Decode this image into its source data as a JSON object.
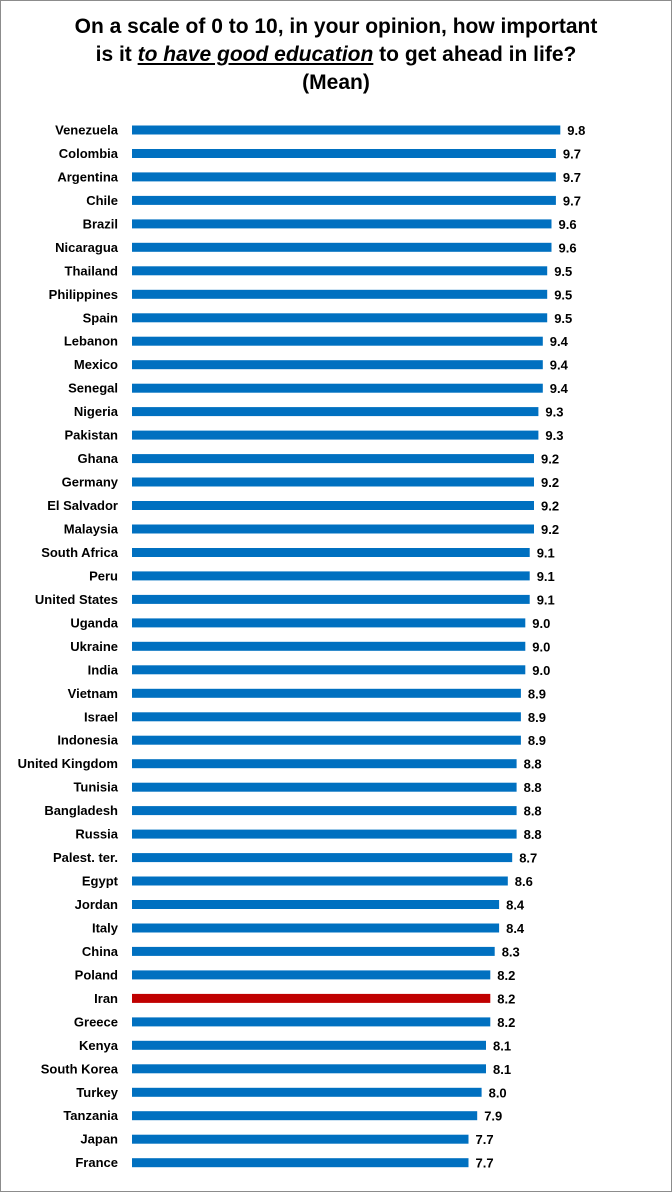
{
  "title": {
    "line1": "On a scale of 0 to 10, in your opinion, how important",
    "line2_pre": "is it ",
    "line2_emph": "to have good education",
    "line2_post": " to get ahead in life?",
    "line3": "(Mean)"
  },
  "chart_data": {
    "type": "bar",
    "orientation": "horizontal",
    "title": "On a scale of 0 to 10, in your opinion, how important is it to have good education to get ahead in life? (Mean)",
    "xlim": [
      0,
      10
    ],
    "grid": false,
    "legend": "none",
    "bar_color": "#0070c0",
    "highlight_color": "#c00000",
    "highlight_category": "Iran",
    "categories": [
      "Venezuela",
      "Colombia",
      "Argentina",
      "Chile",
      "Brazil",
      "Nicaragua",
      "Thailand",
      "Philippines",
      "Spain",
      "Lebanon",
      "Mexico",
      "Senegal",
      "Nigeria",
      "Pakistan",
      "Ghana",
      "Germany",
      "El Salvador",
      "Malaysia",
      "South Africa",
      "Peru",
      "United States",
      "Uganda",
      "Ukraine",
      "India",
      "Vietnam",
      "Israel",
      "Indonesia",
      "United Kingdom",
      "Tunisia",
      "Bangladesh",
      "Russia",
      "Palest. ter.",
      "Egypt",
      "Jordan",
      "Italy",
      "China",
      "Poland",
      "Iran",
      "Greece",
      "Kenya",
      "South Korea",
      "Turkey",
      "Tanzania",
      "Japan",
      "France"
    ],
    "values": [
      9.8,
      9.7,
      9.7,
      9.7,
      9.6,
      9.6,
      9.5,
      9.5,
      9.5,
      9.4,
      9.4,
      9.4,
      9.3,
      9.3,
      9.2,
      9.2,
      9.2,
      9.2,
      9.1,
      9.1,
      9.1,
      9.0,
      9.0,
      9.0,
      8.9,
      8.9,
      8.9,
      8.8,
      8.8,
      8.8,
      8.8,
      8.7,
      8.6,
      8.4,
      8.4,
      8.3,
      8.2,
      8.2,
      8.2,
      8.1,
      8.1,
      8.0,
      7.9,
      7.7,
      7.7
    ],
    "value_labels": [
      "9.8",
      "9.7",
      "9.7",
      "9.7",
      "9.6",
      "9.6",
      "9.5",
      "9.5",
      "9.5",
      "9.4",
      "9.4",
      "9.4",
      "9.3",
      "9.3",
      "9.2",
      "9.2",
      "9.2",
      "9.2",
      "9.1",
      "9.1",
      "9.1",
      "9.0",
      "9.0",
      "9.0",
      "8.9",
      "8.9",
      "8.9",
      "8.8",
      "8.8",
      "8.8",
      "8.8",
      "8.7",
      "8.6",
      "8.4",
      "8.4",
      "8.3",
      "8.2",
      "8.2",
      "8.2",
      "8.1",
      "8.1",
      "8.0",
      "7.9",
      "7.7",
      "7.7"
    ]
  }
}
